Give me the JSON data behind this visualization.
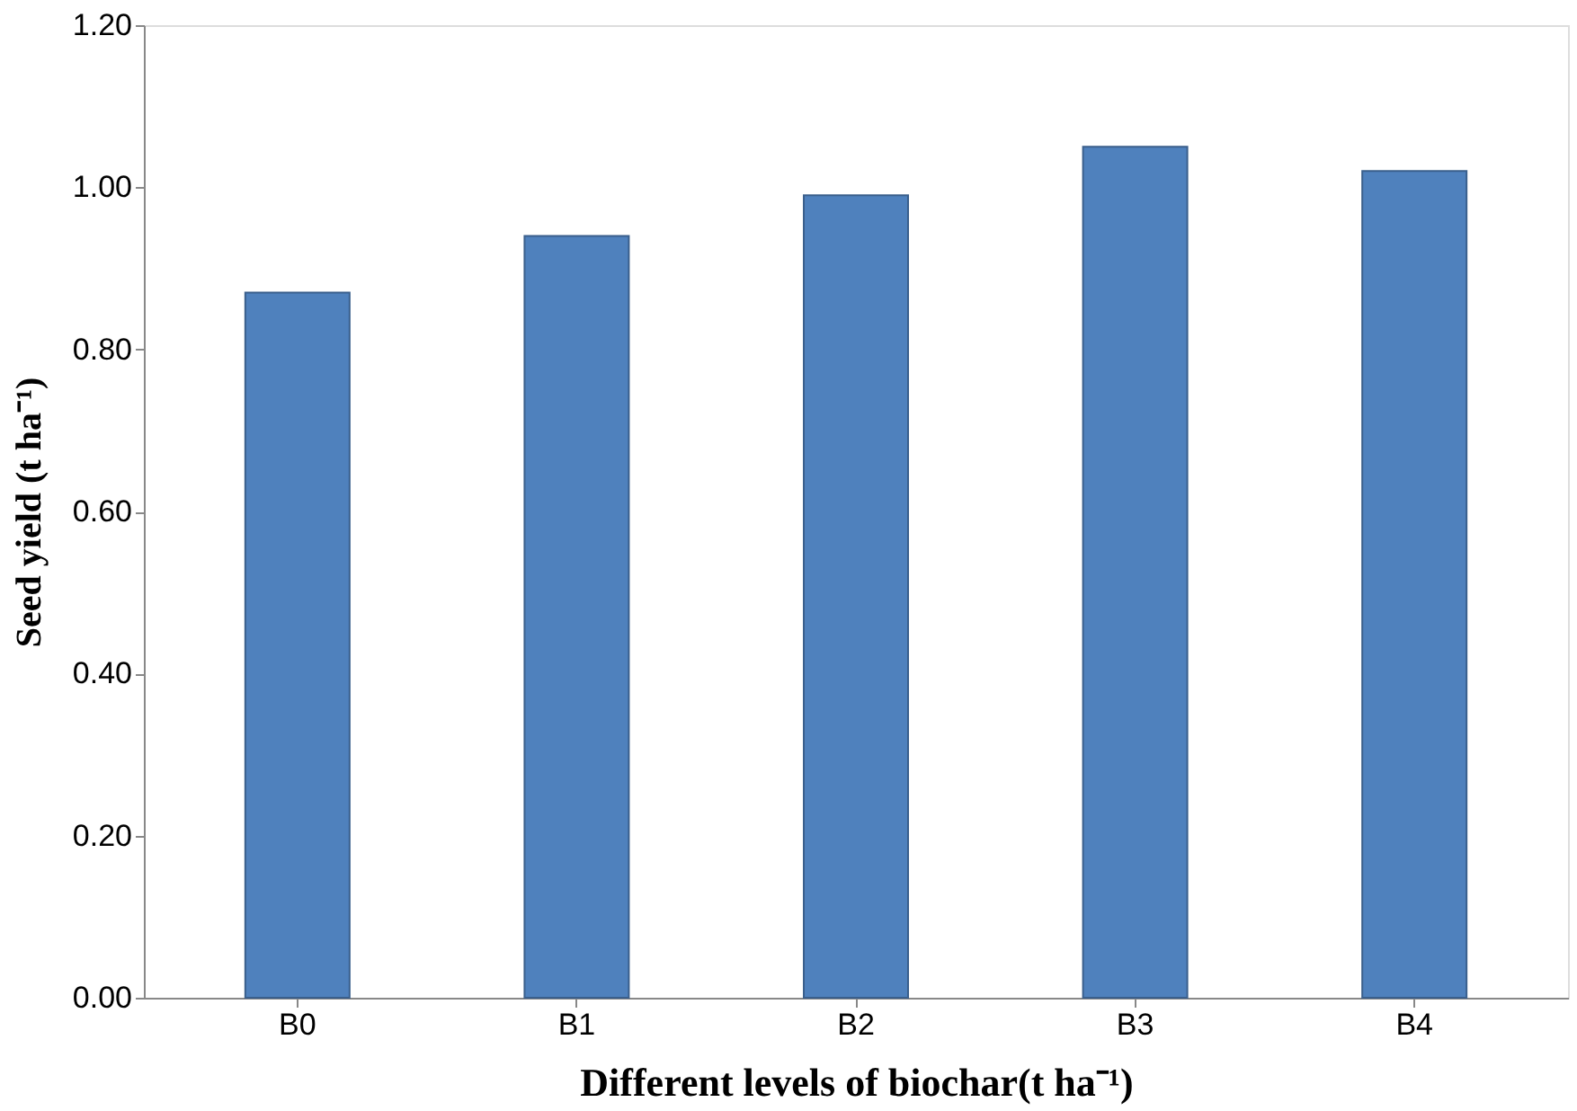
{
  "chart_data": {
    "type": "bar",
    "xlabel": "Different levels of biochar(t ha⁻¹)",
    "ylabel": "Seed yield (t ha⁻¹)",
    "categories": [
      "B0",
      "B1",
      "B2",
      "B3",
      "B4"
    ],
    "values": [
      0.87,
      0.94,
      0.99,
      1.05,
      1.02
    ],
    "color": "#4f81bd",
    "ylim": [
      0,
      1.2
    ],
    "yticks": [
      {
        "value": 0,
        "label": "0.00"
      },
      {
        "value": 0.2,
        "label": "0.20"
      },
      {
        "value": 0.4,
        "label": "0.40"
      },
      {
        "value": 0.6,
        "label": "0.60"
      },
      {
        "value": 0.8,
        "label": "0.80"
      },
      {
        "value": 1.0,
        "label": "1.00"
      },
      {
        "value": 1.2,
        "label": "1.20"
      }
    ],
    "grid": false
  }
}
